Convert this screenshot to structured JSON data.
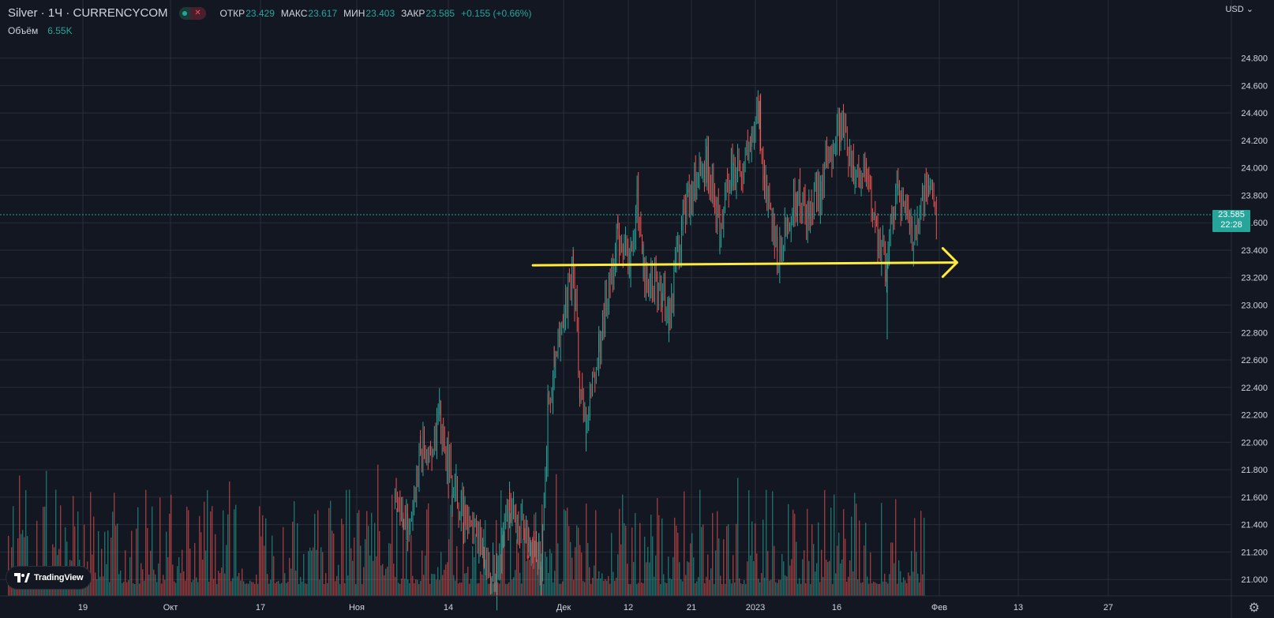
{
  "header": {
    "symbol_title": "Silver · 1Ч · CURRENCYCOM",
    "open_label": "ОТКР",
    "open_value": "23.429",
    "high_label": "МАКС",
    "high_value": "23.617",
    "low_label": "МИН",
    "low_value": "23.403",
    "close_label": "ЗАКР",
    "close_value": "23.585",
    "change_text": "+0.155 (+0.66%)",
    "volume_label": "Объём",
    "volume_value": "6.55K",
    "close_mark_icon": "close-x-icon"
  },
  "axis": {
    "currency_label": "USD",
    "currency_icon": "chevron-down-icon",
    "current_price": "23.585",
    "countdown": "22:28"
  },
  "logo": {
    "text": "TradingView",
    "icon": "tradingview-logo-icon"
  },
  "settings_icon": "gear-icon",
  "colors": {
    "background": "#131722",
    "grid": "#2a2e39",
    "up": "#26a69a",
    "down": "#ef5350",
    "annotation": "#ffeb3b",
    "text": "#d1d4dc"
  },
  "chart_data": {
    "type": "candlestick",
    "title": "Silver · 1Ч · CURRENCYCOM",
    "ylim": [
      20.9,
      24.9
    ],
    "y_ticks": [
      "24.800",
      "24.600",
      "24.400",
      "24.200",
      "24.000",
      "23.800",
      "23.600",
      "23.400",
      "23.200",
      "23.000",
      "22.800",
      "22.600",
      "22.400",
      "22.200",
      "22.000",
      "21.800",
      "21.600",
      "21.400",
      "21.200",
      "21.000"
    ],
    "x_ticks": [
      "19",
      "Окт",
      "17",
      "Ноя",
      "14",
      "Дек",
      "12",
      "21",
      "2023",
      "16",
      "Фев",
      "13",
      "27"
    ],
    "price_path": [
      [
        "2022-11-07",
        21.6
      ],
      [
        "2022-11-09",
        21.4
      ],
      [
        "2022-11-11",
        21.9
      ],
      [
        "2022-11-14",
        22.15
      ],
      [
        "2022-11-16",
        21.7
      ],
      [
        "2022-11-18",
        21.45
      ],
      [
        "2022-11-21",
        21.2
      ],
      [
        "2022-11-23",
        21.0
      ],
      [
        "2022-11-25",
        21.6
      ],
      [
        "2022-11-28",
        21.3
      ],
      [
        "2022-11-30",
        21.1
      ],
      [
        "2022-12-01",
        22.2
      ],
      [
        "2022-12-02",
        22.5
      ],
      [
        "2022-12-05",
        23.3
      ],
      [
        "2022-12-06",
        22.4
      ],
      [
        "2022-12-07",
        22.1
      ],
      [
        "2022-12-09",
        22.7
      ],
      [
        "2022-12-12",
        23.5
      ],
      [
        "2022-12-14",
        23.35
      ],
      [
        "2022-12-15",
        23.8
      ],
      [
        "2022-12-16",
        23.2
      ],
      [
        "2022-12-19",
        23.1
      ],
      [
        "2022-12-20",
        22.9
      ],
      [
        "2022-12-22",
        23.6
      ],
      [
        "2022-12-23",
        23.8
      ],
      [
        "2022-12-26",
        24.05
      ],
      [
        "2022-12-28",
        23.6
      ],
      [
        "2022-12-30",
        24.0
      ],
      [
        "2023-01-02",
        24.1
      ],
      [
        "2023-01-03",
        24.45
      ],
      [
        "2023-01-04",
        23.9
      ],
      [
        "2023-01-06",
        23.3
      ],
      [
        "2023-01-09",
        23.8
      ],
      [
        "2023-01-11",
        23.6
      ],
      [
        "2023-01-13",
        23.9
      ],
      [
        "2023-01-16",
        24.35
      ],
      [
        "2023-01-18",
        24.0
      ],
      [
        "2023-01-20",
        23.9
      ],
      [
        "2023-01-23",
        23.3
      ],
      [
        "2023-01-25",
        23.9
      ],
      [
        "2023-01-27",
        23.5
      ],
      [
        "2023-01-30",
        23.9
      ],
      [
        "2023-01-31",
        23.585
      ]
    ],
    "wick_extremes": {
      "high": 24.53,
      "low": 22.75
    },
    "annotations": [
      {
        "type": "arrow",
        "from": [
          "2022-12-01",
          23.29
        ],
        "to": [
          "2023-01-31",
          23.31
        ]
      }
    ]
  }
}
